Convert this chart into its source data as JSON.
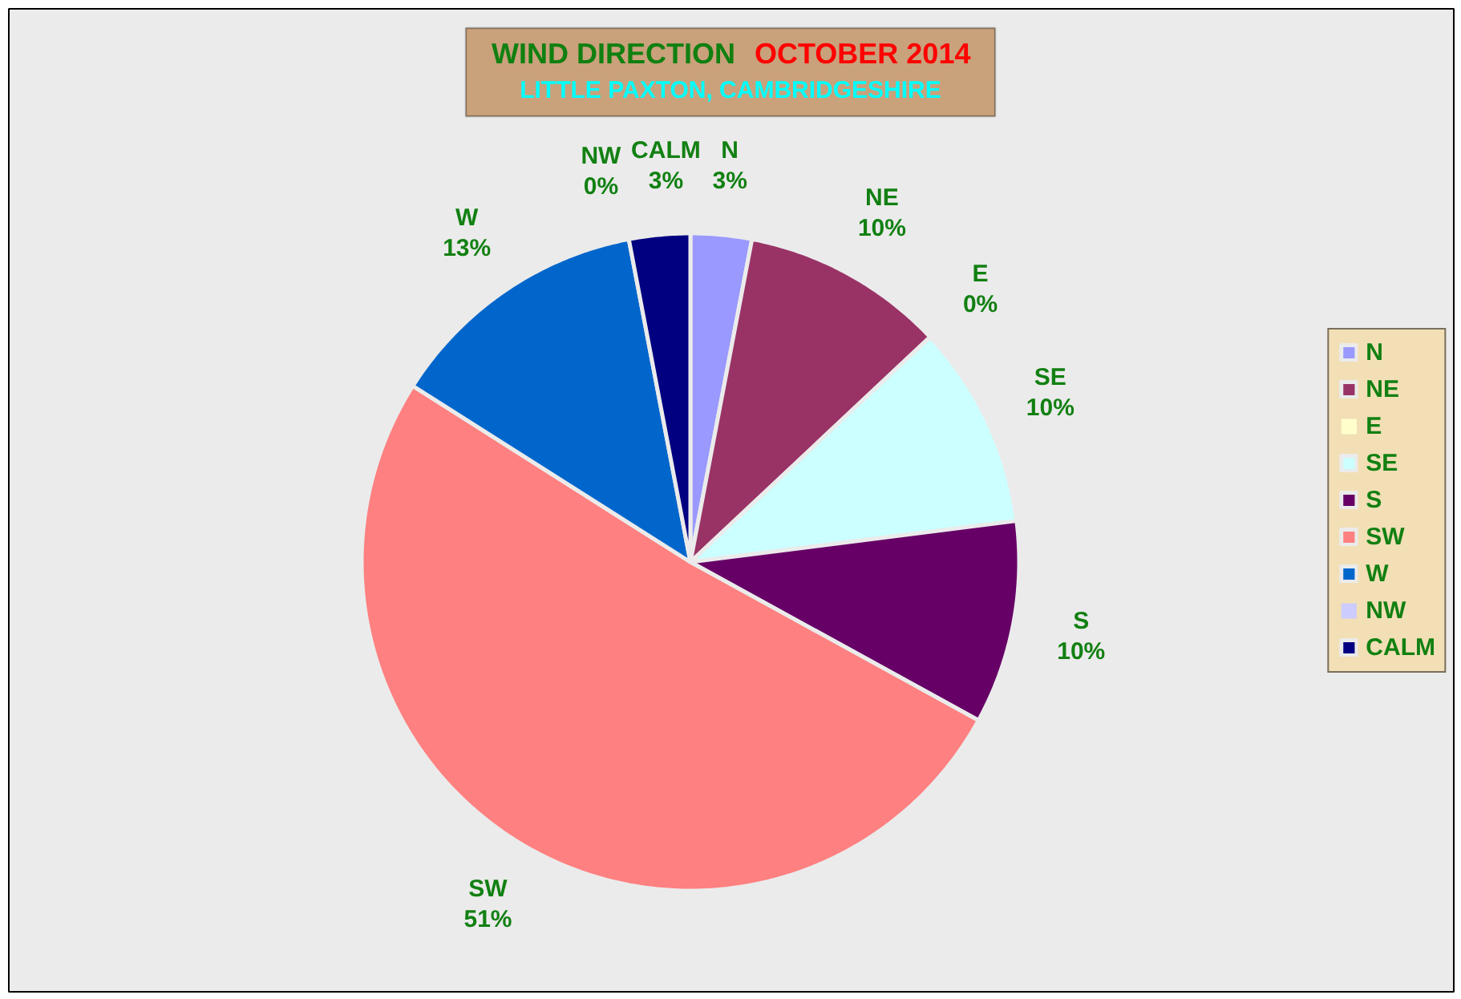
{
  "chart_data": {
    "type": "pie",
    "title": "WIND DIRECTION",
    "subtitle": "LITTLE PAXTON, CAMBRIDGESHIRE",
    "annotations": [
      "OCTOBER 2014"
    ],
    "categories": [
      "N",
      "NE",
      "E",
      "SE",
      "S",
      "SW",
      "W",
      "NW",
      "CALM"
    ],
    "values": [
      3,
      10,
      0,
      10,
      10,
      51,
      13,
      0,
      3
    ],
    "value_labels": [
      "3%",
      "10%",
      "0%",
      "10%",
      "10%",
      "51%",
      "13%",
      "0%",
      "3%"
    ],
    "colors": [
      "#9999ff",
      "#993366",
      "#ffffcc",
      "#ccffff",
      "#660066",
      "#ff8080",
      "#0066cc",
      "#ccccff",
      "#000080"
    ],
    "legend": "right"
  }
}
